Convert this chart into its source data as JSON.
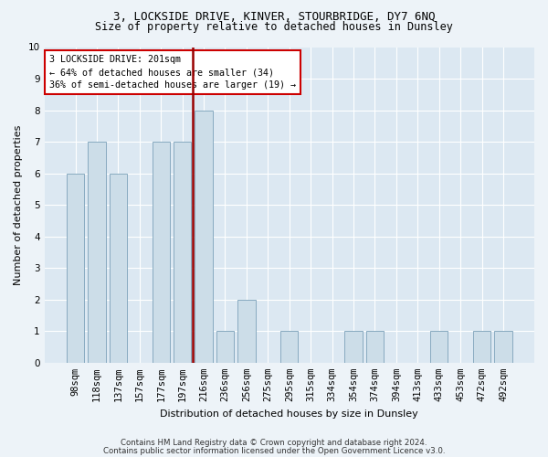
{
  "title1": "3, LOCKSIDE DRIVE, KINVER, STOURBRIDGE, DY7 6NQ",
  "title2": "Size of property relative to detached houses in Dunsley",
  "xlabel": "Distribution of detached houses by size in Dunsley",
  "ylabel": "Number of detached properties",
  "categories": [
    "98sqm",
    "118sqm",
    "137sqm",
    "157sqm",
    "177sqm",
    "197sqm",
    "216sqm",
    "236sqm",
    "256sqm",
    "275sqm",
    "295sqm",
    "315sqm",
    "334sqm",
    "354sqm",
    "374sqm",
    "394sqm",
    "413sqm",
    "433sqm",
    "453sqm",
    "472sqm",
    "492sqm"
  ],
  "values": [
    6,
    7,
    6,
    0,
    7,
    7,
    8,
    1,
    2,
    0,
    1,
    0,
    0,
    1,
    1,
    0,
    0,
    1,
    0,
    1,
    1
  ],
  "bar_color": "#ccdde8",
  "bar_edge_color": "#88aac0",
  "highlight_line_index": 6,
  "highlight_line_color": "#990000",
  "annotation_line1": "3 LOCKSIDE DRIVE: 201sqm",
  "annotation_line2": "← 64% of detached houses are smaller (34)",
  "annotation_line3": "36% of semi-detached houses are larger (19) →",
  "annotation_box_color": "#ffffff",
  "annotation_box_edge": "#cc0000",
  "ylim": [
    0,
    10
  ],
  "yticks": [
    0,
    1,
    2,
    3,
    4,
    5,
    6,
    7,
    8,
    9,
    10
  ],
  "footer1": "Contains HM Land Registry data © Crown copyright and database right 2024.",
  "footer2": "Contains public sector information licensed under the Open Government Licence v3.0.",
  "background_color": "#edf3f8",
  "plot_bg_color": "#dce8f2",
  "grid_color": "#ffffff",
  "title1_fontsize": 9,
  "title2_fontsize": 8.5,
  "bar_width": 0.82
}
